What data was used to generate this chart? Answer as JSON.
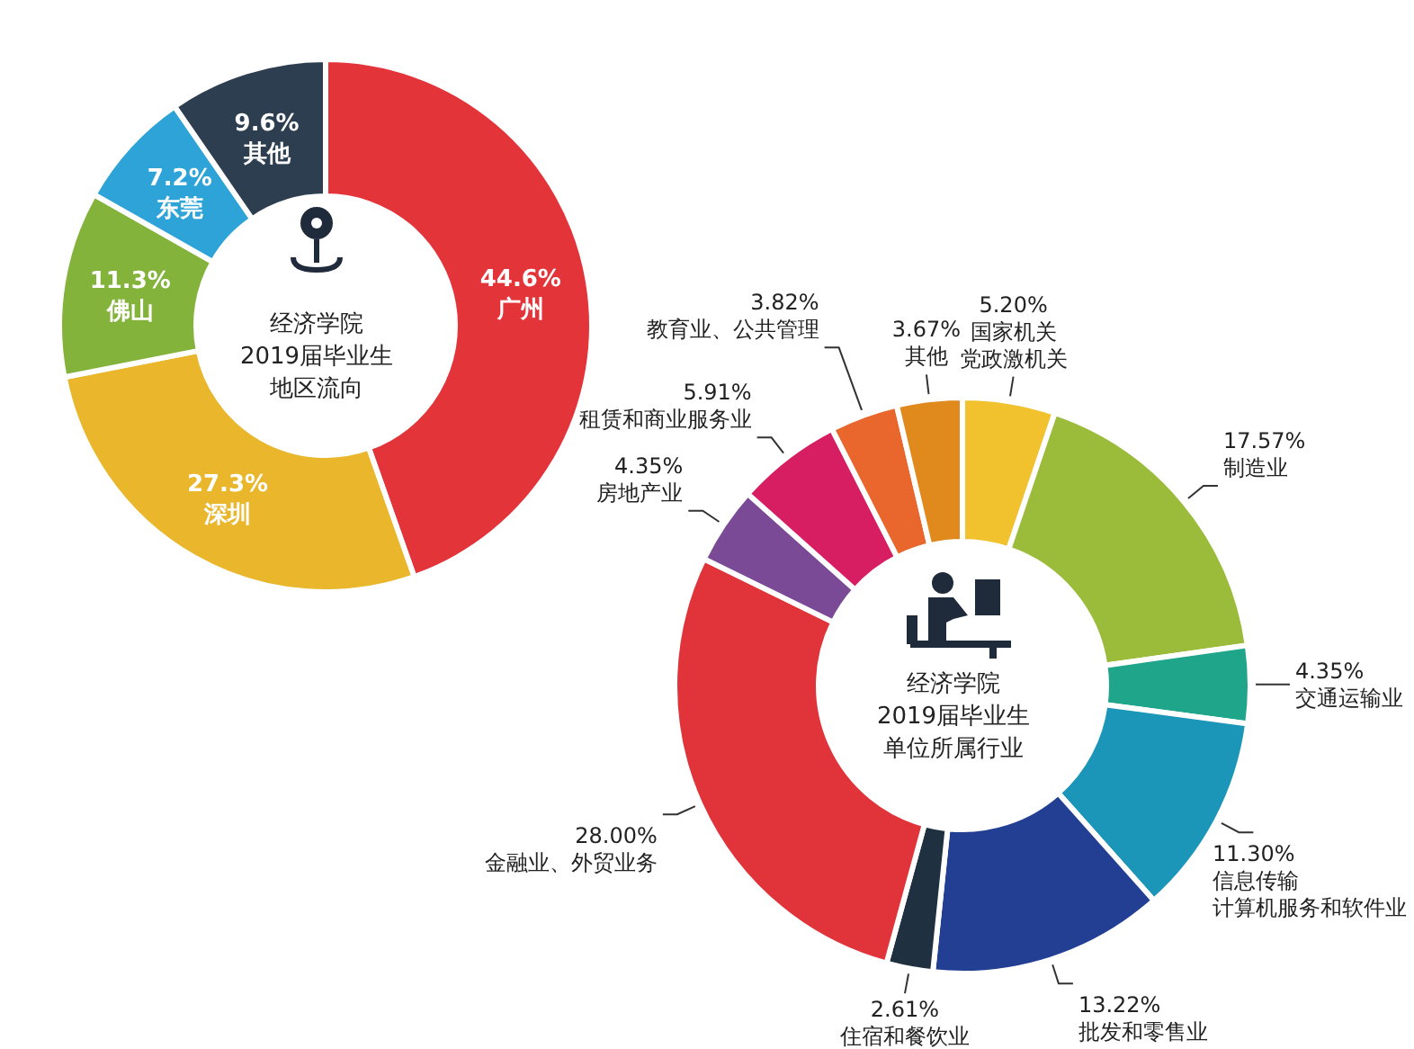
{
  "chart_data": [
    {
      "type": "donut",
      "title": "经济学院2019届毕业生地区流向",
      "categories": [
        "广州",
        "深圳",
        "佛山",
        "东莞",
        "其他"
      ],
      "values": [
        44.6,
        27.3,
        11.3,
        7.2,
        9.6
      ],
      "value_labels": [
        "44.6%",
        "27.3%",
        "11.3%",
        "7.2%",
        "9.6%"
      ],
      "colors": [
        "#e3343a",
        "#e9b62c",
        "#84b33c",
        "#2ea3d8",
        "#2d3e50"
      ]
    },
    {
      "type": "donut",
      "title": "经济学院2019届毕业生单位所属行业",
      "categories": [
        "国家机关党政激机关",
        "制造业",
        "交通运输业",
        "信息传输计算机服务和软件业",
        "批发和零售业",
        "住宿和餐饮业",
        "金融业、外贸业务",
        "房地产业",
        "租赁和商业服务业",
        "教育业、公共管理",
        "其他"
      ],
      "values": [
        5.2,
        17.57,
        4.35,
        11.3,
        13.22,
        2.61,
        28.0,
        4.35,
        5.91,
        3.82,
        3.67
      ],
      "value_labels": [
        "5.20%",
        "17.57%",
        "4.35%",
        "11.30%",
        "13.22%",
        "2.61%",
        "28.00%",
        "4.35%",
        "5.91%",
        "3.82%",
        "3.67%"
      ],
      "colors": [
        "#f2c12e",
        "#9bbb3b",
        "#1fa58a",
        "#1b95b8",
        "#233f94",
        "#1f3040",
        "#e0333a",
        "#7b4a97",
        "#d81e63",
        "#e9662c",
        "#e08a1e"
      ]
    }
  ]
}
